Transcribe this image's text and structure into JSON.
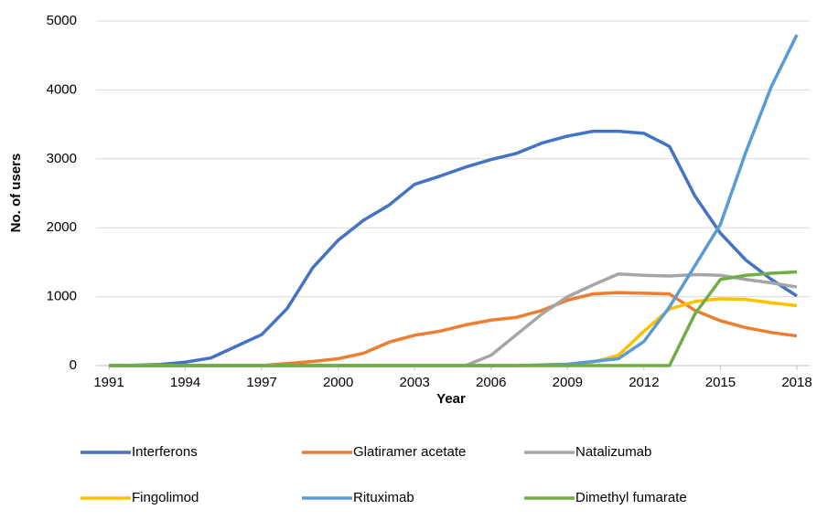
{
  "chart_data": {
    "type": "line",
    "x_label": "Year",
    "y_label": "No. of users",
    "x": [
      1991,
      1992,
      1993,
      1994,
      1995,
      1996,
      1997,
      1998,
      1999,
      2000,
      2001,
      2002,
      2003,
      2004,
      2005,
      2006,
      2007,
      2008,
      2009,
      2010,
      2011,
      2012,
      2013,
      2014,
      2015,
      2016,
      2017,
      2018
    ],
    "xlim": [
      1991,
      2018
    ],
    "xticks": [
      1991,
      1994,
      1997,
      2000,
      2003,
      2006,
      2009,
      2012,
      2015,
      2018
    ],
    "ylim": [
      0,
      5000
    ],
    "yticks": [
      0,
      1000,
      2000,
      3000,
      4000,
      5000
    ],
    "grid": true,
    "legend": "bottom",
    "series": [
      {
        "name": "Interferons",
        "color": "#4472c4",
        "values": [
          0,
          5,
          15,
          50,
          110,
          280,
          450,
          830,
          1420,
          1820,
          2110,
          2330,
          2630,
          2750,
          2880,
          2990,
          3080,
          3230,
          3330,
          3400,
          3400,
          3370,
          3180,
          2460,
          1920,
          1530,
          1250,
          1010
        ]
      },
      {
        "name": "Glatiramer acetate",
        "color": "#ed7d31",
        "values": [
          0,
          0,
          0,
          0,
          0,
          0,
          0,
          30,
          60,
          100,
          180,
          340,
          440,
          500,
          590,
          660,
          700,
          800,
          950,
          1040,
          1060,
          1050,
          1040,
          800,
          650,
          550,
          480,
          430
        ]
      },
      {
        "name": "Natalizumab",
        "color": "#a5a5a5",
        "values": [
          0,
          0,
          0,
          0,
          0,
          0,
          0,
          0,
          0,
          0,
          0,
          0,
          0,
          0,
          0,
          150,
          450,
          750,
          1000,
          1170,
          1330,
          1310,
          1300,
          1320,
          1310,
          1250,
          1200,
          1140
        ]
      },
      {
        "name": "Fingolimod",
        "color": "#ffc000",
        "values": [
          0,
          0,
          0,
          0,
          0,
          0,
          0,
          0,
          0,
          0,
          0,
          0,
          0,
          0,
          0,
          0,
          0,
          0,
          0,
          50,
          150,
          500,
          820,
          930,
          970,
          960,
          910,
          870
        ]
      },
      {
        "name": "Rituximab",
        "color": "#5b9bd5",
        "values": [
          0,
          0,
          0,
          0,
          0,
          0,
          0,
          0,
          0,
          0,
          0,
          0,
          0,
          0,
          0,
          0,
          0,
          10,
          20,
          60,
          100,
          350,
          850,
          1450,
          2050,
          3100,
          4050,
          4800
        ]
      },
      {
        "name": "Dimethyl fumarate",
        "color": "#70ad47",
        "values": [
          0,
          0,
          0,
          0,
          0,
          0,
          0,
          0,
          0,
          0,
          0,
          0,
          0,
          0,
          0,
          0,
          0,
          0,
          0,
          0,
          0,
          0,
          0,
          750,
          1250,
          1310,
          1340,
          1360
        ]
      }
    ]
  }
}
